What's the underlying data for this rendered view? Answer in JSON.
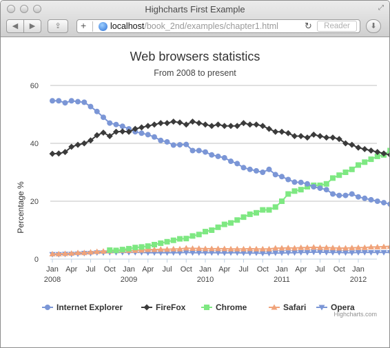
{
  "window": {
    "title": "Highcharts First Example"
  },
  "toolbar": {
    "back_label": "◀",
    "forward_label": "▶",
    "share_label": "⇪",
    "add_label": "+",
    "url_host": "localhost",
    "url_path": "/book_2nd/examples/chapter1.html",
    "reload_label": "↻",
    "reader_label": "Reader",
    "download_label": "⬇"
  },
  "chart_data": {
    "type": "line",
    "title": "Web browsers statistics",
    "subtitle": "From 2008 to present",
    "ylabel": "Percentage %",
    "ylim": [
      0,
      60
    ],
    "yticks": [
      0,
      20,
      40,
      60
    ],
    "x_start": "2008-01",
    "x_end": "2012-03",
    "xtick_months": [
      "Jan",
      "Apr",
      "Jul",
      "Oct",
      "Jan",
      "Apr",
      "Jul",
      "Oct",
      "Jan",
      "Apr",
      "Jul",
      "Oct",
      "Jan",
      "Apr",
      "Jul",
      "Oct",
      "Jan"
    ],
    "xtick_years": [
      "2008",
      "2009",
      "2010",
      "2011",
      "2012"
    ],
    "grid": "horizontal",
    "legend": "bottom",
    "credits": "Highcharts.com",
    "series": [
      {
        "name": "Internet Explorer",
        "color": "#7b96d6",
        "marker": "circle",
        "values": [
          54.7,
          54.7,
          54.0,
          54.7,
          54.4,
          54.2,
          52.7,
          51.0,
          49.0,
          47.0,
          46.5,
          45.9,
          45.0,
          44.0,
          43.5,
          43.0,
          42.2,
          41.0,
          40.5,
          39.4,
          39.5,
          39.6,
          37.5,
          37.5,
          37.0,
          36.0,
          35.5,
          35.0,
          33.8,
          33.0,
          31.6,
          31.0,
          30.5,
          30.0,
          31.0,
          29.2,
          28.5,
          27.5,
          26.6,
          26.5,
          26.0,
          25.0,
          24.5,
          24.0,
          22.5,
          22.0,
          22.0,
          22.5,
          21.5,
          21.0,
          20.5,
          20.0,
          19.5,
          19.0
        ]
      },
      {
        "name": "FireFox",
        "color": "#3b3b3b",
        "marker": "diamond",
        "values": [
          36.4,
          36.5,
          37.0,
          38.8,
          39.5,
          40.0,
          41.0,
          42.8,
          43.7,
          42.5,
          44.0,
          44.1,
          44.0,
          45.0,
          45.5,
          46.0,
          46.5,
          47.0,
          47.0,
          47.5,
          47.2,
          46.5,
          47.5,
          47.0,
          46.5,
          46.0,
          46.5,
          46.0,
          46.0,
          46.0,
          47.0,
          46.5,
          46.5,
          46.0,
          45.0,
          44.0,
          44.0,
          43.5,
          42.5,
          42.5,
          42.0,
          43.0,
          42.5,
          42.0,
          42.0,
          41.5,
          40.0,
          39.5,
          38.5,
          38.0,
          37.5,
          37.0,
          36.5,
          36.0
        ]
      },
      {
        "name": "Chrome",
        "color": "#7ee882",
        "marker": "square",
        "values": [
          null,
          null,
          null,
          null,
          null,
          null,
          null,
          null,
          null,
          3.1,
          3.0,
          3.3,
          3.6,
          4.0,
          4.2,
          4.5,
          5.0,
          5.5,
          6.0,
          6.5,
          7.0,
          7.1,
          8.0,
          8.5,
          9.5,
          10.0,
          11.0,
          12.0,
          12.5,
          13.5,
          14.5,
          15.5,
          16.0,
          17.0,
          17.0,
          18.0,
          20.0,
          22.5,
          23.5,
          24.0,
          25.0,
          25.5,
          25.5,
          26.0,
          28.0,
          29.0,
          30.0,
          31.0,
          32.5,
          33.5,
          34.5,
          35.5,
          36.0,
          37.5
        ]
      },
      {
        "name": "Safari",
        "color": "#f0a37a",
        "marker": "triangle",
        "values": [
          1.8,
          1.8,
          1.9,
          2.0,
          2.2,
          2.2,
          2.4,
          2.6,
          2.7,
          2.8,
          2.9,
          3.0,
          3.0,
          3.0,
          3.1,
          3.3,
          3.3,
          3.4,
          3.4,
          3.5,
          3.5,
          3.8,
          3.7,
          3.7,
          3.6,
          3.6,
          3.6,
          3.6,
          3.5,
          3.5,
          3.5,
          3.6,
          3.5,
          3.5,
          3.5,
          3.8,
          3.8,
          3.9,
          3.8,
          4.0,
          4.0,
          4.1,
          4.0,
          4.0,
          3.9,
          3.8,
          3.8,
          3.9,
          4.0,
          4.0,
          4.2,
          4.2,
          4.3,
          4.4
        ]
      },
      {
        "name": "Opera",
        "color": "#7b96d6",
        "marker": "triangle-down",
        "values": [
          1.6,
          1.6,
          1.7,
          1.7,
          1.8,
          2.0,
          2.0,
          2.2,
          2.2,
          2.3,
          2.3,
          2.3,
          2.3,
          2.3,
          2.3,
          2.2,
          2.2,
          2.2,
          2.2,
          2.2,
          2.2,
          2.3,
          2.2,
          2.2,
          2.2,
          2.2,
          2.2,
          2.1,
          2.2,
          2.2,
          2.1,
          2.1,
          2.1,
          2.0,
          2.0,
          2.1,
          2.1,
          2.2,
          2.2,
          2.3,
          2.3,
          2.4,
          2.4,
          2.3,
          2.3,
          2.3,
          2.2,
          2.2,
          2.3,
          2.3,
          2.3,
          2.3,
          2.3,
          2.3
        ]
      }
    ]
  }
}
